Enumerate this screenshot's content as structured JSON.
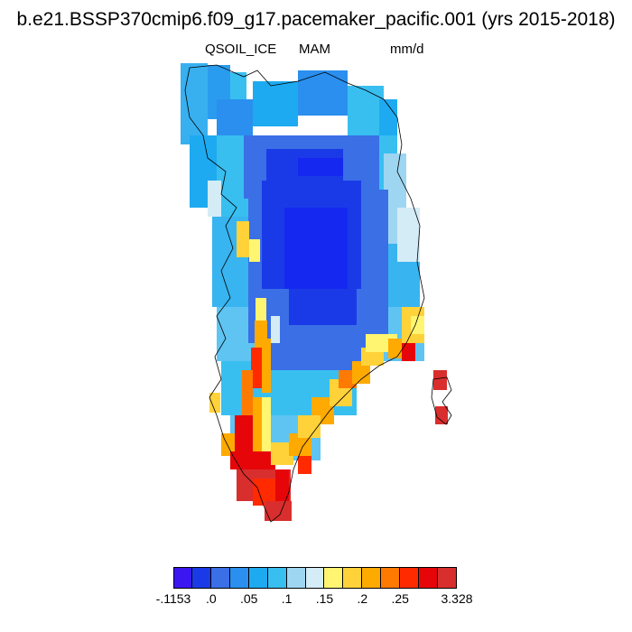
{
  "header": {
    "title": "b.e21.BSSP370cmip6.f09_g17.pacemaker_pacific.001 (yrs 2015-2018)",
    "variable": "QSOIL_ICE",
    "season": "MAM",
    "units": "mm/d"
  },
  "colorbar": {
    "colors": [
      "#3c16f0",
      "#1a3ae8",
      "#3a6fe6",
      "#2a8fee",
      "#1eaaf0",
      "#38bff0",
      "#9ed6f2",
      "#d4ecf6",
      "#fff570",
      "#ffd23a",
      "#ffaa00",
      "#ff7a00",
      "#ff2a00",
      "#e6060a",
      "#d92e2e"
    ],
    "labels": [
      {
        "text": "-.1153",
        "boundary": 0
      },
      {
        "text": ".0",
        "boundary": 2
      },
      {
        "text": ".05",
        "boundary": 4
      },
      {
        "text": ".1",
        "boundary": 6
      },
      {
        "text": ".15",
        "boundary": 8
      },
      {
        "text": ".2",
        "boundary": 10
      },
      {
        "text": ".25",
        "boundary": 12
      },
      {
        "text": "3.328",
        "boundary": 15
      }
    ]
  }
}
